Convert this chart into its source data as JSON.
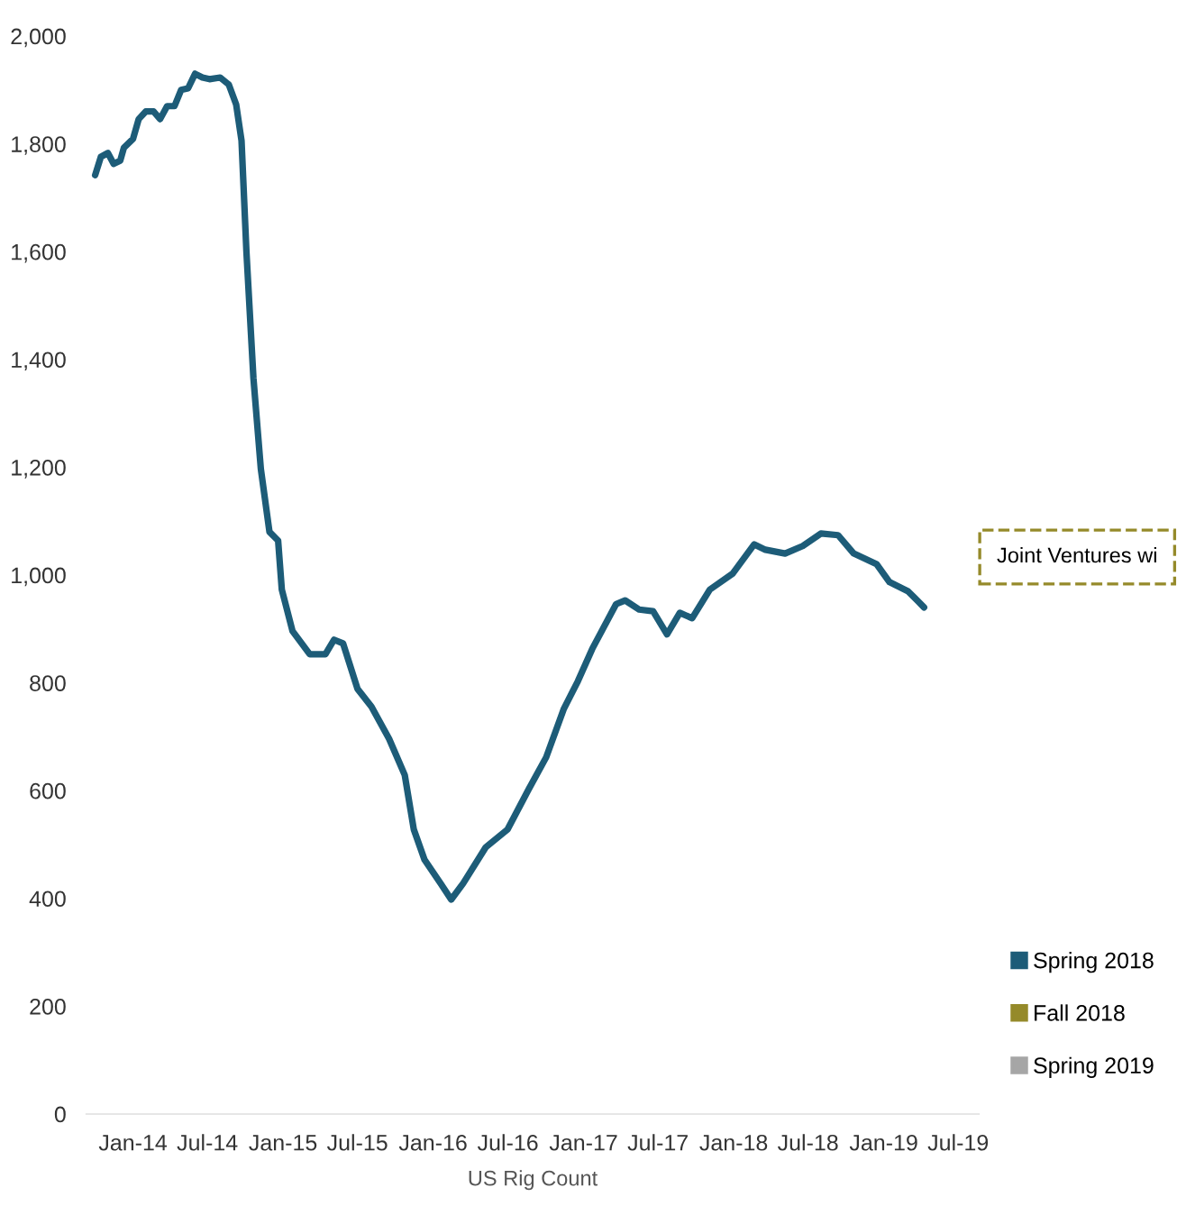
{
  "chart_data": {
    "type": "line",
    "xlabel": "US Rig Count",
    "annotations": [
      "Joint Ventures wi"
    ],
    "xlim": [
      "2013-09-10",
      "2019-08-20"
    ],
    "xticks": [
      {
        "value": "2014-01-01",
        "label": "Jan-14"
      },
      {
        "value": "2014-07-01",
        "label": "Jul-14"
      },
      {
        "value": "2015-01-01",
        "label": "Jan-15"
      },
      {
        "value": "2015-07-01",
        "label": "Jul-15"
      },
      {
        "value": "2016-01-01",
        "label": "Jan-16"
      },
      {
        "value": "2016-07-01",
        "label": "Jul-16"
      },
      {
        "value": "2017-01-01",
        "label": "Jan-17"
      },
      {
        "value": "2017-07-01",
        "label": "Jul-17"
      },
      {
        "value": "2018-01-01",
        "label": "Jan-18"
      },
      {
        "value": "2018-07-01",
        "label": "Jul-18"
      },
      {
        "value": "2019-01-01",
        "label": "Jan-19"
      },
      {
        "value": "2019-07-01",
        "label": "Jul-19"
      }
    ],
    "ylim": [
      0,
      2000
    ],
    "yticks": [
      0,
      200,
      400,
      600,
      800,
      {
        "value": 1000,
        "label": "1,000"
      },
      {
        "value": 1200,
        "label": "1,200"
      },
      {
        "value": 1400,
        "label": "1,400"
      },
      {
        "value": 1600,
        "label": "1,600"
      },
      {
        "value": 1800,
        "label": "1,800"
      },
      {
        "value": 2000,
        "label": "2,000"
      }
    ],
    "grid": false,
    "legend": "right",
    "marker": "none",
    "line_style": "solid",
    "series": [
      {
        "name": "Spring 2018",
        "color": "#1d5c78",
        "x": [
          "2013-10-01",
          "2013-10-15",
          "2013-11-01",
          "2013-11-15",
          "2013-12-01",
          "2013-12-10",
          "2014-01-01",
          "2014-01-15",
          "2014-02-01",
          "2014-02-20",
          "2014-03-08",
          "2014-03-25",
          "2014-04-12",
          "2014-04-28",
          "2014-05-15",
          "2014-06-01",
          "2014-06-19",
          "2014-07-06",
          "2014-08-01",
          "2014-08-22",
          "2014-09-09",
          "2014-09-22",
          "2014-10-04",
          "2014-10-21",
          "2014-11-08",
          "2014-11-29",
          "2014-12-20",
          "2014-12-29",
          "2015-01-24",
          "2015-03-07",
          "2015-04-14",
          "2015-05-05",
          "2015-05-27",
          "2015-07-01",
          "2015-08-04",
          "2015-09-16",
          "2015-10-24",
          "2015-11-15",
          "2015-12-11",
          "2016-01-19",
          "2016-02-14",
          "2016-03-14",
          "2016-05-08",
          "2016-06-30",
          "2016-08-20",
          "2016-10-02",
          "2016-11-14",
          "2016-12-18",
          "2017-01-22",
          "2017-03-21",
          "2017-04-12",
          "2017-05-16",
          "2017-06-19",
          "2017-07-23",
          "2017-08-23",
          "2017-09-22",
          "2017-11-04",
          "2017-12-30",
          "2018-02-20",
          "2018-03-19",
          "2018-05-06",
          "2018-06-18",
          "2018-08-01",
          "2018-09-12",
          "2018-10-20",
          "2018-12-15",
          "2019-01-15",
          "2019-03-01",
          "2019-04-09"
        ],
        "values": [
          1742,
          1776,
          1783,
          1763,
          1769,
          1793,
          1809,
          1846,
          1860,
          1860,
          1846,
          1870,
          1870,
          1900,
          1903,
          1930,
          1923,
          1920,
          1923,
          1910,
          1873,
          1806,
          1599,
          1365,
          1197,
          1080,
          1064,
          973,
          896,
          853,
          853,
          880,
          873,
          789,
          756,
          696,
          629,
          528,
          472,
          428,
          398,
          428,
          495,
          528,
          602,
          662,
          752,
          803,
          863,
          946,
          953,
          936,
          933,
          890,
          930,
          920,
          973,
          1003,
          1057,
          1047,
          1040,
          1054,
          1077,
          1074,
          1040,
          1020,
          987,
          970,
          940
        ]
      },
      {
        "name": "Fall 2018",
        "color": "#958a2a"
      },
      {
        "name": "Spring 2019",
        "color": "#a6a6a6"
      }
    ]
  }
}
